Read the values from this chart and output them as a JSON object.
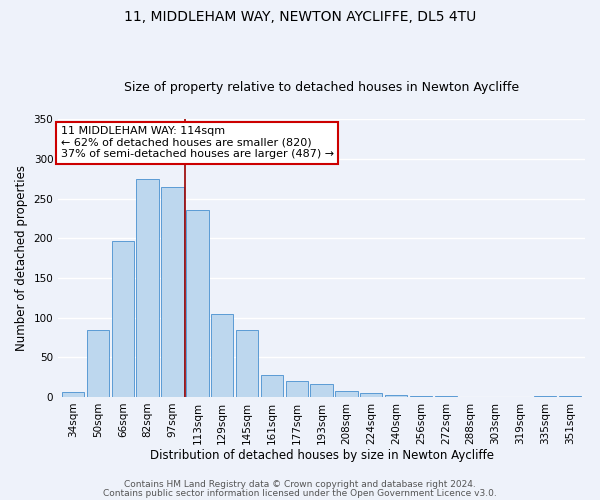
{
  "title": "11, MIDDLEHAM WAY, NEWTON AYCLIFFE, DL5 4TU",
  "subtitle": "Size of property relative to detached houses in Newton Aycliffe",
  "xlabel": "Distribution of detached houses by size in Newton Aycliffe",
  "ylabel": "Number of detached properties",
  "bar_labels": [
    "34sqm",
    "50sqm",
    "66sqm",
    "82sqm",
    "97sqm",
    "113sqm",
    "129sqm",
    "145sqm",
    "161sqm",
    "177sqm",
    "193sqm",
    "208sqm",
    "224sqm",
    "240sqm",
    "256sqm",
    "272sqm",
    "288sqm",
    "303sqm",
    "319sqm",
    "335sqm",
    "351sqm"
  ],
  "bar_values": [
    6,
    84,
    196,
    275,
    265,
    236,
    104,
    84,
    28,
    20,
    16,
    8,
    5,
    2,
    1,
    1,
    0,
    0,
    0,
    1,
    1
  ],
  "bar_color": "#bdd7ee",
  "bar_edge_color": "#5b9bd5",
  "marker_line_color": "#990000",
  "annotation_line1": "11 MIDDLEHAM WAY: 114sqm",
  "annotation_line2": "← 62% of detached houses are smaller (820)",
  "annotation_line3": "37% of semi-detached houses are larger (487) →",
  "box_edge_color": "#cc0000",
  "ylim": [
    0,
    350
  ],
  "yticks": [
    0,
    50,
    100,
    150,
    200,
    250,
    300,
    350
  ],
  "footer1": "Contains HM Land Registry data © Crown copyright and database right 2024.",
  "footer2": "Contains public sector information licensed under the Open Government Licence v3.0.",
  "background_color": "#eef2fa",
  "grid_color": "#ffffff",
  "title_fontsize": 10,
  "subtitle_fontsize": 9,
  "axis_label_fontsize": 8.5,
  "tick_fontsize": 7.5,
  "annotation_fontsize": 8,
  "footer_fontsize": 6.5
}
